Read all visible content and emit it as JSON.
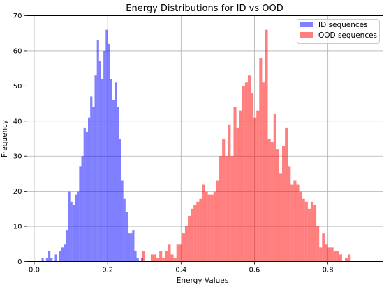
{
  "chart_data": {
    "type": "bar",
    "title": "Energy Distributions for ID vs OOD",
    "xlabel": "Energy Values",
    "ylabel": "Frequency",
    "xlim": [
      -0.02,
      0.95
    ],
    "ylim": [
      0,
      70
    ],
    "xticks": [
      0.0,
      0.2,
      0.4,
      0.6,
      0.8
    ],
    "yticks": [
      0,
      10,
      20,
      30,
      40,
      50,
      60,
      70
    ],
    "xtick_labels": [
      "0.0",
      "0.2",
      "0.4",
      "0.6",
      "0.8"
    ],
    "ytick_labels": [
      "0",
      "10",
      "20",
      "30",
      "40",
      "50",
      "60",
      "70"
    ],
    "grid": true,
    "legend_position": "top-right",
    "series": [
      {
        "name": "ID sequences",
        "color": "#0000ff",
        "alpha": 0.5,
        "bin_start": 0.02,
        "bin_width": 0.00602,
        "counts": [
          1,
          0,
          1,
          3,
          1,
          0,
          2,
          0,
          3,
          4,
          5,
          9,
          20,
          17,
          16,
          19,
          20,
          27,
          30,
          38,
          37,
          41,
          47,
          44,
          53,
          63,
          57,
          52,
          60,
          66,
          62,
          52,
          46,
          51,
          44,
          35,
          23,
          18,
          14,
          8,
          8,
          9,
          3,
          1,
          0,
          1
        ]
      },
      {
        "name": "OOD sequences",
        "color": "#ff0000",
        "alpha": 0.5,
        "bin_start": 0.294,
        "bin_width": 0.00778,
        "counts": [
          3,
          0,
          0,
          2,
          2,
          1,
          3,
          1,
          3,
          5,
          2,
          1,
          5,
          5,
          8,
          10,
          13,
          15,
          16,
          17,
          18,
          22,
          20,
          19,
          19,
          20,
          23,
          30,
          35,
          30,
          39,
          30,
          44,
          38,
          43,
          50,
          51,
          53,
          48,
          41,
          43,
          58,
          51,
          66,
          35,
          34,
          42,
          32,
          25,
          33,
          38,
          27,
          22,
          23,
          22,
          20,
          18,
          17,
          15,
          17,
          16,
          10,
          4,
          8,
          5,
          4,
          4,
          3,
          3,
          2,
          0,
          1,
          2
        ]
      }
    ]
  }
}
